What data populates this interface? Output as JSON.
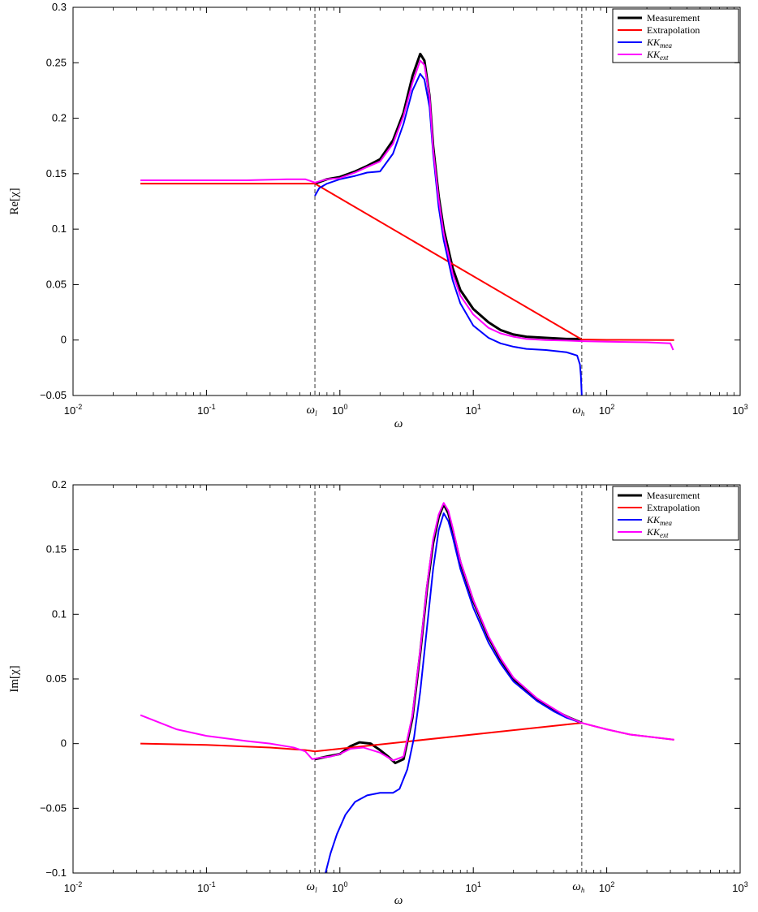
{
  "chart_data": [
    {
      "type": "line",
      "id": "real",
      "xlabel": "ω",
      "ylabel": "Re[χ]",
      "xscale": "log",
      "xlim": [
        0.01,
        1000
      ],
      "ylim": [
        -0.05,
        0.3
      ],
      "xticks": [
        0.01,
        0.1,
        1,
        10,
        100,
        1000
      ],
      "xtick_labels": [
        "10",
        "10",
        "10",
        "10",
        "10",
        "10"
      ],
      "xtick_exponents": [
        "-2",
        "-1",
        "0",
        "1",
        "2",
        "3"
      ],
      "yticks": [
        -0.05,
        0,
        0.05,
        0.1,
        0.15,
        0.2,
        0.25,
        0.3
      ],
      "ytick_labels": [
        "−0.05",
        "0",
        "0.05",
        "0.1",
        "0.15",
        "0.2",
        "0.25",
        "0.3"
      ],
      "vlines": [
        {
          "x": 0.65,
          "label": "ω",
          "sub": "l"
        },
        {
          "x": 65,
          "label": "ω",
          "sub": "h"
        }
      ],
      "legend_position": "top-right",
      "series": [
        {
          "name": "Measurement",
          "color": "#000000",
          "width": 3,
          "points": [
            [
              0.65,
              0.141
            ],
            [
              0.8,
              0.145
            ],
            [
              1,
              0.147
            ],
            [
              1.3,
              0.152
            ],
            [
              1.6,
              0.157
            ],
            [
              2,
              0.163
            ],
            [
              2.5,
              0.18
            ],
            [
              3,
              0.205
            ],
            [
              3.5,
              0.238
            ],
            [
              4,
              0.258
            ],
            [
              4.3,
              0.252
            ],
            [
              4.7,
              0.22
            ],
            [
              5,
              0.175
            ],
            [
              5.5,
              0.13
            ],
            [
              6,
              0.1
            ],
            [
              7,
              0.065
            ],
            [
              8,
              0.045
            ],
            [
              10,
              0.028
            ],
            [
              13,
              0.016
            ],
            [
              16,
              0.009
            ],
            [
              20,
              0.005
            ],
            [
              25,
              0.003
            ],
            [
              35,
              0.002
            ],
            [
              50,
              0.001
            ],
            [
              65,
              0.001
            ]
          ]
        },
        {
          "name": "Extrapolation",
          "color": "#ff0000",
          "width": 2,
          "points": [
            [
              0.032,
              0.141
            ],
            [
              0.3,
              0.141
            ],
            [
              0.65,
              0.141
            ],
            [
              65,
              0.0005
            ],
            [
              100,
              0.0002
            ],
            [
              200,
              0.0001
            ],
            [
              320,
              0.0
            ]
          ]
        },
        {
          "name": "KK",
          "sub": "mea",
          "color": "#0000ff",
          "width": 2,
          "points": [
            [
              0.65,
              0.13
            ],
            [
              0.7,
              0.137
            ],
            [
              0.8,
              0.141
            ],
            [
              1,
              0.145
            ],
            [
              1.3,
              0.148
            ],
            [
              1.6,
              0.151
            ],
            [
              2,
              0.152
            ],
            [
              2.5,
              0.168
            ],
            [
              3,
              0.195
            ],
            [
              3.5,
              0.225
            ],
            [
              4,
              0.24
            ],
            [
              4.3,
              0.235
            ],
            [
              4.7,
              0.21
            ],
            [
              5,
              0.168
            ],
            [
              5.5,
              0.12
            ],
            [
              6,
              0.09
            ],
            [
              7,
              0.054
            ],
            [
              8,
              0.033
            ],
            [
              10,
              0.013
            ],
            [
              13,
              0.002
            ],
            [
              16,
              -0.003
            ],
            [
              20,
              -0.006
            ],
            [
              25,
              -0.008
            ],
            [
              35,
              -0.009
            ],
            [
              50,
              -0.011
            ],
            [
              60,
              -0.014
            ],
            [
              63,
              -0.022
            ],
            [
              64,
              -0.032
            ],
            [
              65,
              -0.05
            ]
          ]
        },
        {
          "name": "KK",
          "sub": "ext",
          "color": "#ff00ff",
          "width": 2,
          "points": [
            [
              0.032,
              0.144
            ],
            [
              0.2,
              0.144
            ],
            [
              0.4,
              0.145
            ],
            [
              0.55,
              0.145
            ],
            [
              0.65,
              0.142
            ],
            [
              0.8,
              0.145
            ],
            [
              1,
              0.146
            ],
            [
              1.3,
              0.151
            ],
            [
              1.6,
              0.156
            ],
            [
              2,
              0.161
            ],
            [
              2.5,
              0.177
            ],
            [
              3,
              0.202
            ],
            [
              3.5,
              0.232
            ],
            [
              4,
              0.252
            ],
            [
              4.3,
              0.248
            ],
            [
              4.7,
              0.22
            ],
            [
              5,
              0.172
            ],
            [
              5.5,
              0.127
            ],
            [
              6,
              0.096
            ],
            [
              7,
              0.06
            ],
            [
              8,
              0.04
            ],
            [
              10,
              0.023
            ],
            [
              13,
              0.011
            ],
            [
              16,
              0.006
            ],
            [
              20,
              0.003
            ],
            [
              25,
              0.001
            ],
            [
              35,
              0.0
            ],
            [
              50,
              -0.0005
            ],
            [
              65,
              -0.001
            ],
            [
              100,
              -0.0015
            ],
            [
              200,
              -0.002
            ],
            [
              300,
              -0.003
            ],
            [
              315,
              -0.009
            ]
          ]
        }
      ]
    },
    {
      "type": "line",
      "id": "imag",
      "xlabel": "ω",
      "ylabel": "Im[χ]",
      "xscale": "log",
      "xlim": [
        0.01,
        1000
      ],
      "ylim": [
        -0.1,
        0.2
      ],
      "xticks": [
        0.01,
        0.1,
        1,
        10,
        100,
        1000
      ],
      "xtick_labels": [
        "10",
        "10",
        "10",
        "10",
        "10",
        "10"
      ],
      "xtick_exponents": [
        "-2",
        "-1",
        "0",
        "1",
        "2",
        "3"
      ],
      "yticks": [
        -0.1,
        -0.05,
        0,
        0.05,
        0.1,
        0.15,
        0.2
      ],
      "ytick_labels": [
        "−0.1",
        "−0.05",
        "0",
        "0.05",
        "0.1",
        "0.15",
        "0.2"
      ],
      "vlines": [
        {
          "x": 0.65,
          "label": "ω",
          "sub": "l"
        },
        {
          "x": 65,
          "label": "ω",
          "sub": "h"
        }
      ],
      "legend_position": "top-right",
      "series": [
        {
          "name": "Measurement",
          "color": "#000000",
          "width": 3,
          "points": [
            [
              0.65,
              -0.012
            ],
            [
              0.8,
              -0.01
            ],
            [
              1,
              -0.008
            ],
            [
              1.2,
              -0.002
            ],
            [
              1.4,
              0.001
            ],
            [
              1.7,
              0.0
            ],
            [
              2,
              -0.005
            ],
            [
              2.3,
              -0.01
            ],
            [
              2.6,
              -0.015
            ],
            [
              3,
              -0.012
            ],
            [
              3.5,
              0.02
            ],
            [
              4,
              0.07
            ],
            [
              4.5,
              0.12
            ],
            [
              5,
              0.155
            ],
            [
              5.5,
              0.175
            ],
            [
              6,
              0.185
            ],
            [
              6.5,
              0.178
            ],
            [
              7,
              0.165
            ],
            [
              8,
              0.14
            ],
            [
              10,
              0.11
            ],
            [
              13,
              0.082
            ],
            [
              16,
              0.065
            ],
            [
              20,
              0.05
            ],
            [
              30,
              0.034
            ],
            [
              40,
              0.026
            ],
            [
              50,
              0.021
            ],
            [
              65,
              0.016
            ]
          ]
        },
        {
          "name": "Extrapolation",
          "color": "#ff0000",
          "width": 2,
          "points": [
            [
              0.032,
              0.0
            ],
            [
              0.1,
              -0.001
            ],
            [
              0.3,
              -0.003
            ],
            [
              0.55,
              -0.005
            ],
            [
              0.65,
              -0.006
            ],
            [
              65,
              0.016
            ],
            [
              100,
              0.011
            ],
            [
              150,
              0.007
            ],
            [
              200,
              0.0055
            ],
            [
              320,
              0.003
            ]
          ]
        },
        {
          "name": "KK",
          "sub": "mea",
          "color": "#0000ff",
          "width": 2,
          "points": [
            [
              0.78,
              -0.1
            ],
            [
              0.85,
              -0.085
            ],
            [
              0.95,
              -0.07
            ],
            [
              1.1,
              -0.055
            ],
            [
              1.3,
              -0.045
            ],
            [
              1.6,
              -0.04
            ],
            [
              2,
              -0.038
            ],
            [
              2.5,
              -0.038
            ],
            [
              2.8,
              -0.035
            ],
            [
              3.2,
              -0.02
            ],
            [
              3.6,
              0.005
            ],
            [
              4,
              0.04
            ],
            [
              4.5,
              0.09
            ],
            [
              5,
              0.135
            ],
            [
              5.5,
              0.165
            ],
            [
              6,
              0.178
            ],
            [
              6.5,
              0.172
            ],
            [
              7,
              0.16
            ],
            [
              8,
              0.135
            ],
            [
              10,
              0.105
            ],
            [
              13,
              0.078
            ],
            [
              16,
              0.062
            ],
            [
              20,
              0.048
            ],
            [
              30,
              0.033
            ],
            [
              40,
              0.025
            ],
            [
              50,
              0.02
            ],
            [
              65,
              0.016
            ]
          ]
        },
        {
          "name": "KK",
          "sub": "ext",
          "color": "#ff00ff",
          "width": 2,
          "points": [
            [
              0.032,
              0.022
            ],
            [
              0.06,
              0.011
            ],
            [
              0.1,
              0.006
            ],
            [
              0.2,
              0.002
            ],
            [
              0.3,
              0.0
            ],
            [
              0.45,
              -0.003
            ],
            [
              0.55,
              -0.006
            ],
            [
              0.62,
              -0.012
            ],
            [
              0.7,
              -0.011
            ],
            [
              0.85,
              -0.01
            ],
            [
              1,
              -0.008
            ],
            [
              1.2,
              -0.004
            ],
            [
              1.5,
              -0.003
            ],
            [
              2,
              -0.007
            ],
            [
              2.5,
              -0.013
            ],
            [
              3,
              -0.01
            ],
            [
              3.5,
              0.022
            ],
            [
              4,
              0.072
            ],
            [
              4.5,
              0.122
            ],
            [
              5,
              0.158
            ],
            [
              5.5,
              0.177
            ],
            [
              6,
              0.186
            ],
            [
              6.5,
              0.18
            ],
            [
              7,
              0.167
            ],
            [
              8,
              0.141
            ],
            [
              10,
              0.111
            ],
            [
              13,
              0.083
            ],
            [
              16,
              0.066
            ],
            [
              20,
              0.051
            ],
            [
              30,
              0.035
            ],
            [
              40,
              0.027
            ],
            [
              50,
              0.021
            ],
            [
              65,
              0.016
            ],
            [
              100,
              0.011
            ],
            [
              150,
              0.007
            ],
            [
              200,
              0.0055
            ],
            [
              320,
              0.003
            ]
          ]
        }
      ]
    }
  ],
  "legend": [
    {
      "name": "Measurement",
      "color": "#000000"
    },
    {
      "name": "Extrapolation",
      "color": "#ff0000"
    },
    {
      "name": "KK",
      "sub": "mea",
      "color": "#0000ff"
    },
    {
      "name": "KK",
      "sub": "ext",
      "color": "#ff00ff"
    }
  ]
}
